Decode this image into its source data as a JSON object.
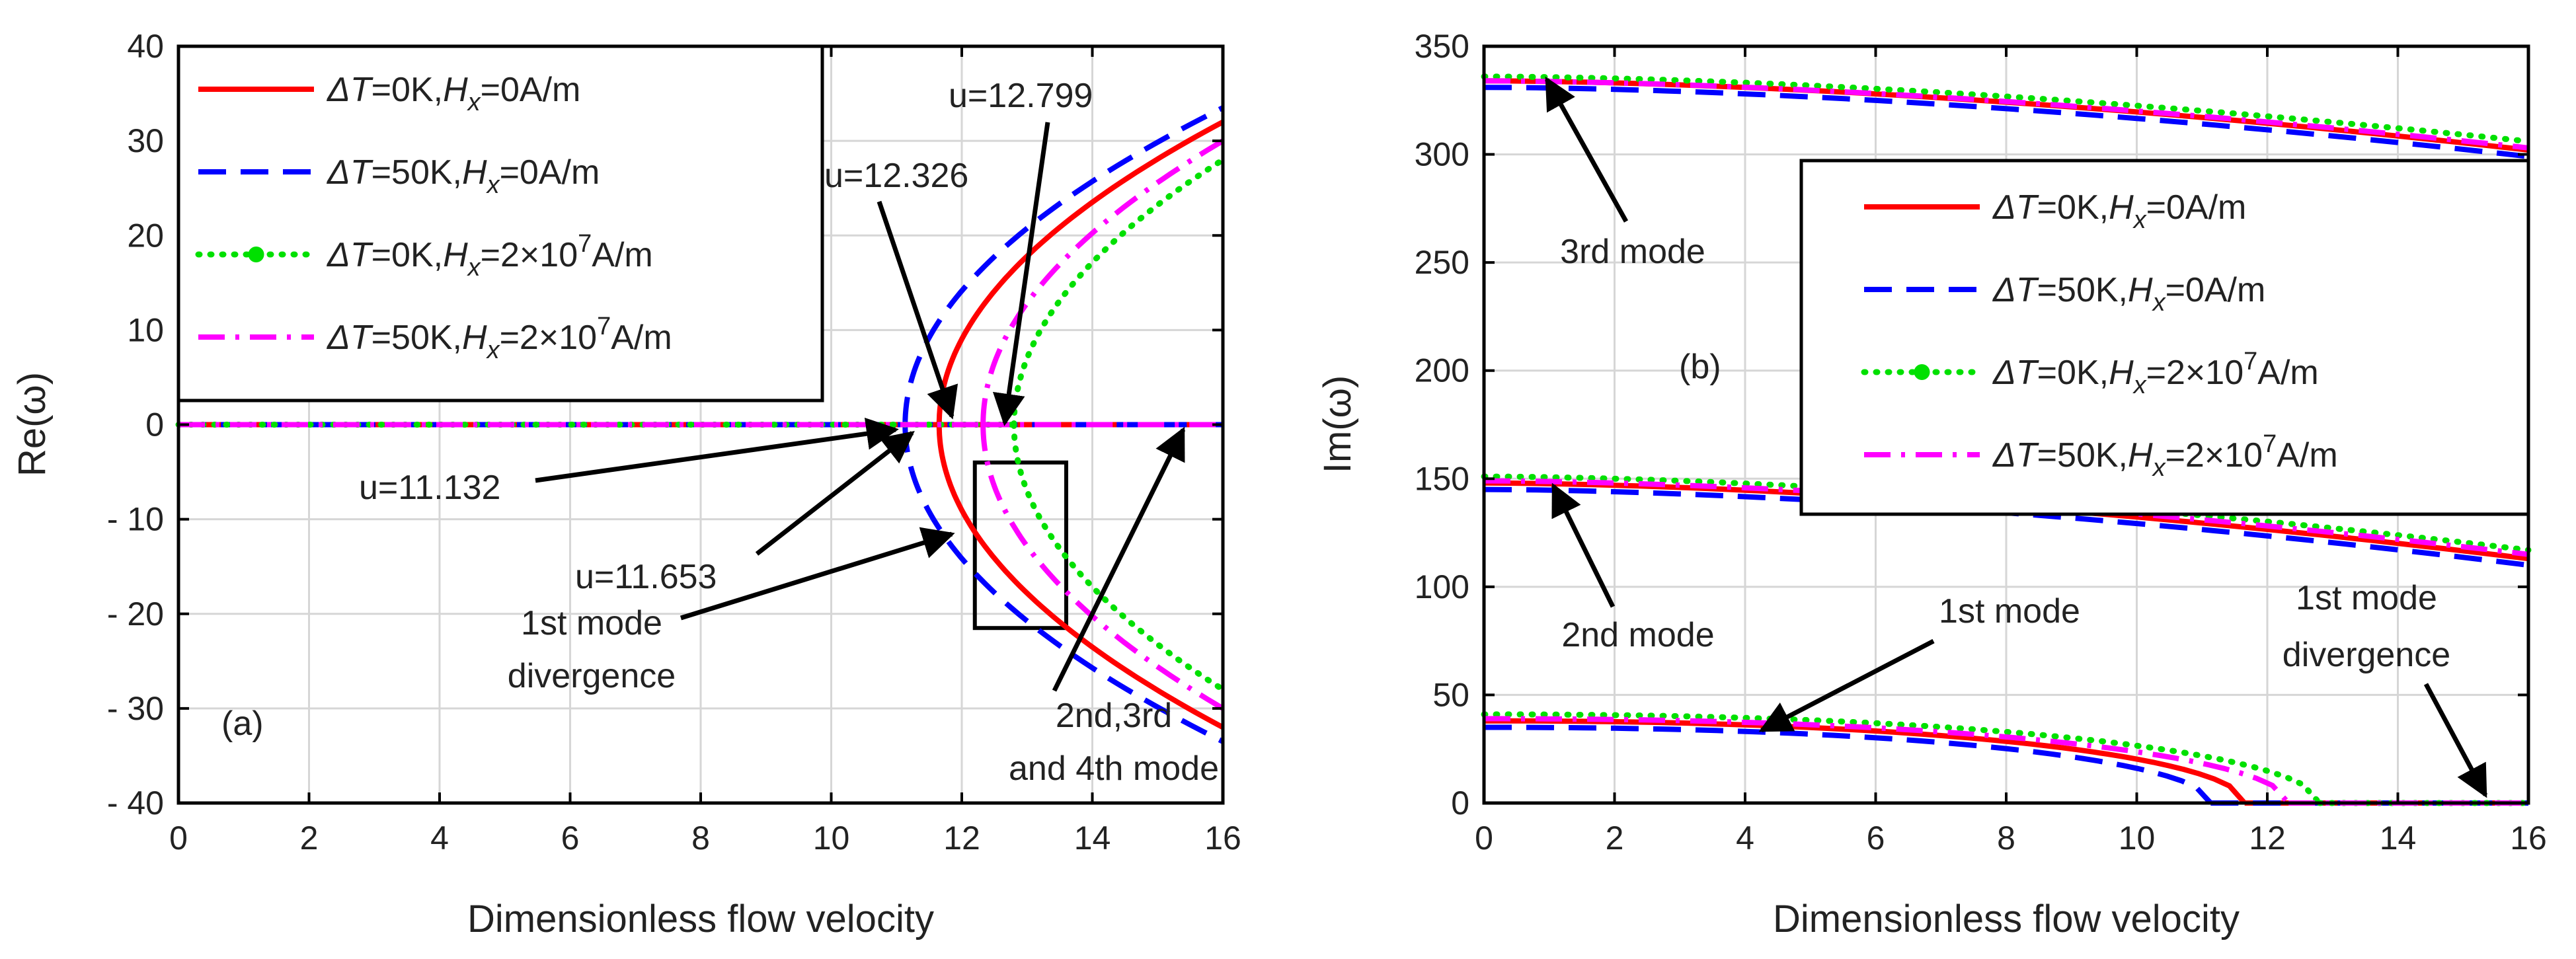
{
  "figure": {
    "xlabel": "Dimensionless flow velocity",
    "legend": [
      {
        "key": "dT0_H0",
        "dT": "=0K,",
        "hx": "=0A/m",
        "exp": "",
        "color": "#ff0000",
        "dash": "solid"
      },
      {
        "key": "dT50_H0",
        "dT": "=50K,",
        "hx": "=0A/m",
        "exp": "",
        "color": "#0000ff",
        "dash": "dash"
      },
      {
        "key": "dT0_H2e7",
        "dT": "=0K,",
        "hx": "=2×10",
        "exp": "7",
        "unit": "A/m",
        "color": "#00e000",
        "dash": "dot"
      },
      {
        "key": "dT50_H2e7",
        "dT": "=50K,",
        "hx": "=2×10",
        "exp": "7",
        "unit": "A/m",
        "color": "#ff00ff",
        "dash": "dashdot"
      }
    ],
    "legend_symbols": {
      "delta_T": "ΔT",
      "H": "H",
      "H_sub": "x"
    }
  },
  "chart_data": [
    {
      "panel": "a",
      "type": "line",
      "panel_label": "(a)",
      "xlabel": "Dimensionless flow velocity",
      "ylabel": "Re(ω)",
      "xlim": [
        0,
        16
      ],
      "ylim": [
        -40,
        40
      ],
      "x_ticks": [
        "0",
        "2",
        "4",
        "6",
        "8",
        "10",
        "12",
        "14",
        "16"
      ],
      "y_ticks": [
        "40",
        "30",
        "20",
        "10",
        "0",
        "- 10",
        "- 20",
        "- 30",
        "- 40"
      ],
      "grid": true,
      "legend_position": "top-left",
      "series": [
        {
          "name": "ΔT=0K,Hx=0A/m",
          "critical_u": 11.653,
          "edge_value": 32
        },
        {
          "name": "ΔT=50K,Hx=0A/m",
          "critical_u": 11.132,
          "edge_value": 33.5
        },
        {
          "name": "ΔT=0K,Hx=2×10^7A/m",
          "critical_u": 12.799,
          "edge_value": 28
        },
        {
          "name": "ΔT=50K,Hx=2×10^7A/m",
          "critical_u": 12.326,
          "edge_value": 30
        }
      ],
      "annotations": [
        {
          "text": "u=12.799"
        },
        {
          "text": "u=12.326"
        },
        {
          "text": "u=11.132"
        },
        {
          "text": "u=11.653"
        },
        {
          "text": "1st mode divergence",
          "line1": "1st mode",
          "line2": "divergence"
        },
        {
          "text": "2nd,3rd and 4th mode",
          "line1": "2nd,3rd",
          "line2": "and 4th mode"
        }
      ],
      "box": {
        "x": [
          12.2,
          13.6
        ],
        "y": [
          -21.5,
          -4
        ]
      }
    },
    {
      "panel": "b",
      "type": "line",
      "panel_label": "(b)",
      "xlabel": "Dimensionless flow velocity",
      "ylabel": "Im(ω)",
      "xlim": [
        0,
        16
      ],
      "ylim": [
        0,
        350
      ],
      "x_ticks": [
        "0",
        "2",
        "4",
        "6",
        "8",
        "10",
        "12",
        "14",
        "16"
      ],
      "y_ticks": [
        "350",
        "300",
        "250",
        "200",
        "150",
        "100",
        "50",
        "0"
      ],
      "grid": true,
      "legend_position": "center-right",
      "series": [
        {
          "name": "ΔT=0K,Hx=0A/m",
          "mode3": [
            334,
            302
          ],
          "mode2": [
            148,
            113
          ],
          "mode1_start": 38,
          "divergence_u": 11.653
        },
        {
          "name": "ΔT=50K,Hx=0A/m",
          "mode3": [
            331,
            299
          ],
          "mode2": [
            145,
            110
          ],
          "mode1_start": 35,
          "divergence_u": 11.132
        },
        {
          "name": "ΔT=0K,Hx=2×10^7A/m",
          "mode3": [
            336,
            306
          ],
          "mode2": [
            151,
            117
          ],
          "mode1_start": 41,
          "divergence_u": 12.799
        },
        {
          "name": "ΔT=50K,Hx=2×10^7A/m",
          "mode3": [
            334,
            303
          ],
          "mode2": [
            149,
            115
          ],
          "mode1_start": 39,
          "divergence_u": 12.326
        }
      ],
      "annotations": [
        {
          "text": "3rd mode"
        },
        {
          "text": "2nd mode"
        },
        {
          "text": "1st mode"
        },
        {
          "text": "1st mode divergence",
          "line1": "1st mode",
          "line2": "divergence"
        }
      ]
    }
  ]
}
